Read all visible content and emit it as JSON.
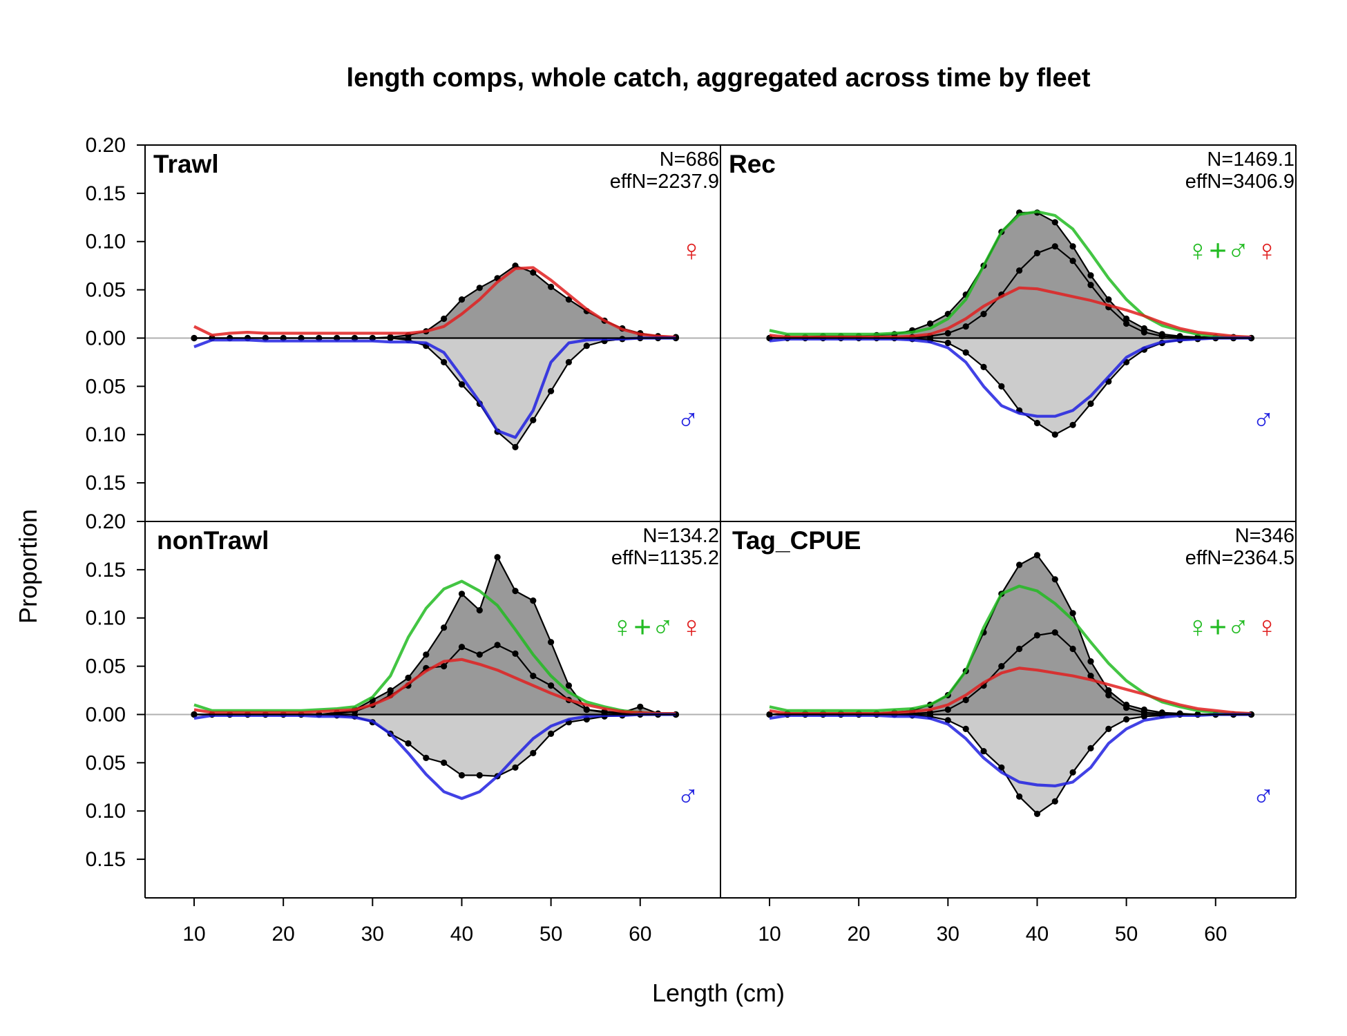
{
  "chart_data": {
    "type": "area",
    "title": "length comps, whole catch, aggregated across time by fleet",
    "xlabel": "Length (cm)",
    "ylabel": "Proportion",
    "xlim": [
      4.5,
      69
    ],
    "ylim": [
      -0.19,
      0.2
    ],
    "x_ticks": [
      10,
      20,
      30,
      40,
      50,
      60
    ],
    "y_ticks": [
      {
        "v": 0.2,
        "label": "0.20"
      },
      {
        "v": 0.15,
        "label": "0.15"
      },
      {
        "v": 0.1,
        "label": "0.10"
      },
      {
        "v": 0.05,
        "label": "0.05"
      },
      {
        "v": 0.0,
        "label": "0.00"
      },
      {
        "v": -0.05,
        "label": "0.05"
      },
      {
        "v": -0.1,
        "label": "0.10"
      },
      {
        "v": -0.15,
        "label": "0.15"
      }
    ],
    "x": [
      10,
      12,
      14,
      16,
      18,
      20,
      22,
      24,
      26,
      28,
      30,
      32,
      34,
      36,
      38,
      40,
      42,
      44,
      46,
      48,
      50,
      52,
      54,
      56,
      58,
      60,
      62,
      64
    ],
    "colors": {
      "female": "#e02020",
      "male": "#2020e0",
      "combined": "#22bb22",
      "observed": "#000000",
      "fill_female": "#999999",
      "fill_male": "#cccccc"
    },
    "sex_symbols": {
      "female": "♀",
      "male": "♂",
      "combined": "♀+♂"
    },
    "panels": [
      {
        "name": "Trawl",
        "N_label": "N=686",
        "effN_label": "effN=2237.9",
        "obs_female": [
          0,
          0,
          0,
          0,
          0,
          0,
          0,
          0,
          0,
          0,
          0,
          0.001,
          0.003,
          0.007,
          0.02,
          0.04,
          0.052,
          0.062,
          0.075,
          0.068,
          0.053,
          0.04,
          0.028,
          0.018,
          0.01,
          0.005,
          0.002,
          0.001
        ],
        "obs_male": [
          0,
          0,
          0,
          0,
          0,
          0,
          0,
          0,
          0,
          0,
          0,
          0,
          -0.002,
          -0.008,
          -0.025,
          -0.048,
          -0.068,
          -0.097,
          -0.113,
          -0.085,
          -0.055,
          -0.025,
          -0.008,
          -0.003,
          -0.001,
          0,
          0,
          0
        ],
        "exp_female": [
          0.012,
          0.003,
          0.005,
          0.006,
          0.005,
          0.005,
          0.005,
          0.005,
          0.005,
          0.005,
          0.005,
          0.005,
          0.005,
          0.007,
          0.012,
          0.025,
          0.04,
          0.058,
          0.072,
          0.073,
          0.06,
          0.045,
          0.03,
          0.018,
          0.009,
          0.004,
          0.002,
          0.001
        ],
        "exp_male": [
          -0.009,
          -0.002,
          -0.002,
          -0.002,
          -0.003,
          -0.003,
          -0.003,
          -0.003,
          -0.003,
          -0.003,
          -0.003,
          -0.004,
          -0.004,
          -0.005,
          -0.015,
          -0.04,
          -0.066,
          -0.096,
          -0.103,
          -0.075,
          -0.025,
          -0.005,
          -0.002,
          -0.001,
          -0.001,
          0,
          0,
          0
        ],
        "exp_combined": null
      },
      {
        "name": "Rec",
        "N_label": "N=1469.1",
        "effN_label": "effN=3406.9",
        "obs_combined": [
          0,
          0.001,
          0.001,
          0.002,
          0.002,
          0.002,
          0.003,
          0.004,
          0.008,
          0.015,
          0.025,
          0.045,
          0.075,
          0.11,
          0.13,
          0.13,
          0.12,
          0.095,
          0.065,
          0.04,
          0.02,
          0.01,
          0.004,
          0.002,
          0.001,
          0.001,
          0.001,
          0
        ],
        "obs_female": [
          0,
          0,
          0,
          0,
          0,
          0,
          0,
          0,
          0.001,
          0.002,
          0.005,
          0.012,
          0.025,
          0.045,
          0.07,
          0.088,
          0.095,
          0.08,
          0.055,
          0.032,
          0.015,
          0.006,
          0.002,
          0.001,
          0,
          0,
          0,
          0
        ],
        "obs_male": [
          0,
          0,
          0,
          0,
          0,
          0,
          0,
          0,
          -0.001,
          -0.002,
          -0.005,
          -0.015,
          -0.03,
          -0.05,
          -0.075,
          -0.088,
          -0.1,
          -0.09,
          -0.068,
          -0.045,
          -0.025,
          -0.012,
          -0.005,
          -0.002,
          -0.001,
          0,
          0,
          0
        ],
        "exp_combined": [
          0.008,
          0.004,
          0.004,
          0.004,
          0.004,
          0.004,
          0.004,
          0.005,
          0.006,
          0.01,
          0.02,
          0.04,
          0.075,
          0.11,
          0.128,
          0.131,
          0.127,
          0.113,
          0.088,
          0.062,
          0.04,
          0.023,
          0.013,
          0.008,
          0.004,
          0.002,
          0.001,
          0.001
        ],
        "exp_female": [
          0.003,
          0.001,
          0.001,
          0.001,
          0.001,
          0.001,
          0.001,
          0.001,
          0.002,
          0.004,
          0.01,
          0.02,
          0.033,
          0.043,
          0.052,
          0.051,
          0.047,
          0.043,
          0.039,
          0.034,
          0.029,
          0.023,
          0.016,
          0.01,
          0.006,
          0.004,
          0.002,
          0.001
        ],
        "exp_male": [
          -0.003,
          -0.001,
          -0.001,
          -0.001,
          -0.001,
          -0.001,
          -0.001,
          -0.001,
          -0.002,
          -0.004,
          -0.01,
          -0.025,
          -0.05,
          -0.07,
          -0.078,
          -0.081,
          -0.081,
          -0.075,
          -0.06,
          -0.04,
          -0.02,
          -0.01,
          -0.004,
          -0.002,
          -0.001,
          0,
          0,
          0
        ]
      },
      {
        "name": "nonTrawl",
        "N_label": "N=134.2",
        "effN_label": "effN=1135.2",
        "obs_combined": [
          0,
          0,
          0,
          0,
          0,
          0,
          0,
          0,
          0.002,
          0.005,
          0.015,
          0.025,
          0.038,
          0.062,
          0.09,
          0.125,
          0.108,
          0.163,
          0.128,
          0.118,
          0.075,
          0.03,
          0.005,
          0.003,
          0.002,
          0.008,
          0.001,
          0
        ],
        "obs_female": [
          0,
          0,
          0,
          0,
          0,
          0,
          0,
          0,
          0.001,
          0.003,
          0.01,
          0.02,
          0.03,
          0.048,
          0.05,
          0.07,
          0.062,
          0.072,
          0.063,
          0.04,
          0.03,
          0.015,
          0.005,
          0.002,
          0.001,
          0.001,
          0,
          0
        ],
        "obs_male": [
          0,
          0,
          0,
          0,
          0,
          0,
          0,
          0,
          -0.001,
          -0.002,
          -0.008,
          -0.02,
          -0.03,
          -0.045,
          -0.05,
          -0.063,
          -0.063,
          -0.064,
          -0.055,
          -0.04,
          -0.02,
          -0.008,
          -0.005,
          -0.002,
          -0.001,
          0,
          0,
          0
        ],
        "exp_combined": [
          0.01,
          0.004,
          0.004,
          0.004,
          0.004,
          0.004,
          0.004,
          0.005,
          0.006,
          0.008,
          0.018,
          0.04,
          0.08,
          0.11,
          0.13,
          0.138,
          0.128,
          0.113,
          0.088,
          0.062,
          0.04,
          0.023,
          0.013,
          0.008,
          0.004,
          0.002,
          0.001,
          0.001
        ],
        "exp_female": [
          0.005,
          0.002,
          0.002,
          0.002,
          0.002,
          0.002,
          0.002,
          0.003,
          0.004,
          0.005,
          0.01,
          0.018,
          0.032,
          0.045,
          0.055,
          0.057,
          0.052,
          0.046,
          0.038,
          0.03,
          0.022,
          0.015,
          0.01,
          0.006,
          0.003,
          0.002,
          0.001,
          0.001
        ],
        "exp_male": [
          -0.004,
          -0.001,
          -0.001,
          -0.001,
          -0.001,
          -0.001,
          -0.001,
          -0.002,
          -0.002,
          -0.003,
          -0.007,
          -0.02,
          -0.04,
          -0.062,
          -0.08,
          -0.087,
          -0.08,
          -0.064,
          -0.044,
          -0.025,
          -0.012,
          -0.005,
          -0.002,
          -0.001,
          -0.001,
          0,
          0,
          0
        ]
      },
      {
        "name": "Tag_CPUE",
        "N_label": "N=346",
        "effN_label": "effN=2364.5",
        "obs_combined": [
          0,
          0.001,
          0.001,
          0.001,
          0.001,
          0.001,
          0.001,
          0.002,
          0.004,
          0.01,
          0.02,
          0.045,
          0.085,
          0.125,
          0.155,
          0.165,
          0.14,
          0.105,
          0.055,
          0.025,
          0.01,
          0.005,
          0.002,
          0.001,
          0,
          0,
          0,
          0
        ],
        "obs_female": [
          0,
          0,
          0,
          0,
          0,
          0,
          0,
          0,
          0.001,
          0.002,
          0.005,
          0.015,
          0.03,
          0.05,
          0.068,
          0.082,
          0.085,
          0.068,
          0.04,
          0.02,
          0.007,
          0.002,
          0.001,
          0,
          0,
          0,
          0,
          0
        ],
        "obs_male": [
          0,
          0,
          0,
          0,
          0,
          0,
          0,
          0,
          -0.001,
          -0.002,
          -0.006,
          -0.015,
          -0.038,
          -0.055,
          -0.085,
          -0.103,
          -0.09,
          -0.06,
          -0.035,
          -0.015,
          -0.005,
          -0.002,
          -0.001,
          0,
          0,
          0,
          0,
          0
        ],
        "exp_combined": [
          0.008,
          0.004,
          0.004,
          0.004,
          0.004,
          0.004,
          0.004,
          0.005,
          0.006,
          0.01,
          0.02,
          0.045,
          0.09,
          0.125,
          0.133,
          0.128,
          0.115,
          0.098,
          0.075,
          0.053,
          0.035,
          0.022,
          0.013,
          0.008,
          0.004,
          0.002,
          0.001,
          0.001
        ],
        "exp_female": [
          0.004,
          0.001,
          0.001,
          0.001,
          0.001,
          0.001,
          0.001,
          0.002,
          0.003,
          0.005,
          0.01,
          0.02,
          0.033,
          0.043,
          0.048,
          0.046,
          0.043,
          0.04,
          0.036,
          0.031,
          0.026,
          0.021,
          0.015,
          0.01,
          0.006,
          0.004,
          0.002,
          0.001
        ],
        "exp_male": [
          -0.004,
          -0.001,
          -0.001,
          -0.001,
          -0.001,
          -0.001,
          -0.001,
          -0.002,
          -0.002,
          -0.004,
          -0.01,
          -0.025,
          -0.045,
          -0.06,
          -0.07,
          -0.073,
          -0.074,
          -0.07,
          -0.055,
          -0.03,
          -0.015,
          -0.006,
          -0.003,
          -0.001,
          -0.001,
          0,
          0,
          0
        ]
      }
    ]
  }
}
